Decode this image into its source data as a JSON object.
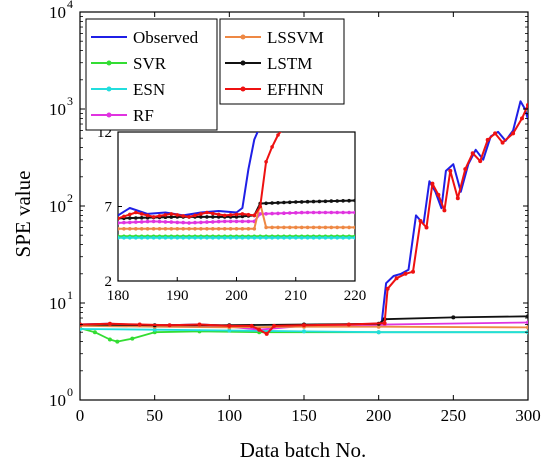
{
  "chart_data": {
    "type": "line",
    "xlabel": "Data batch No.",
    "ylabel": "SPE value",
    "yscale": "log",
    "xlim": [
      0,
      300
    ],
    "ylim": [
      1,
      10000
    ],
    "xticks": [
      "0",
      "50",
      "100",
      "150",
      "200",
      "250",
      "300"
    ],
    "yticks": [
      {
        "base": "10",
        "exp": "0"
      },
      {
        "base": "10",
        "exp": "1"
      },
      {
        "base": "10",
        "exp": "2"
      },
      {
        "base": "10",
        "exp": "3"
      },
      {
        "base": "10",
        "exp": "4"
      }
    ],
    "grid": false,
    "legend_placement": "top-left",
    "series": [
      {
        "name": "Observed",
        "color": "#1f1fe6",
        "marker": "none",
        "points": [
          [
            0,
            6.0
          ],
          [
            20,
            6.1
          ],
          [
            40,
            5.9
          ],
          [
            60,
            5.9
          ],
          [
            80,
            6.0
          ],
          [
            100,
            5.8
          ],
          [
            115,
            5.7
          ],
          [
            120,
            5.2
          ],
          [
            125,
            4.9
          ],
          [
            130,
            5.7
          ],
          [
            150,
            5.9
          ],
          [
            180,
            6.0
          ],
          [
            200,
            6.1
          ],
          [
            202,
            6.3
          ],
          [
            205,
            16
          ],
          [
            210,
            19
          ],
          [
            215,
            20
          ],
          [
            220,
            22
          ],
          [
            225,
            80
          ],
          [
            230,
            65
          ],
          [
            234,
            180
          ],
          [
            238,
            140
          ],
          [
            242,
            95
          ],
          [
            245,
            230
          ],
          [
            250,
            270
          ],
          [
            255,
            140
          ],
          [
            260,
            270
          ],
          [
            265,
            380
          ],
          [
            270,
            300
          ],
          [
            275,
            520
          ],
          [
            280,
            580
          ],
          [
            285,
            470
          ],
          [
            290,
            600
          ],
          [
            295,
            1200
          ],
          [
            298,
            1000
          ],
          [
            300,
            780
          ]
        ]
      },
      {
        "name": "SVR",
        "color": "#33dd33",
        "marker": "dot",
        "points": [
          [
            0,
            5.5
          ],
          [
            10,
            5.0
          ],
          [
            20,
            4.2
          ],
          [
            25,
            4.0
          ],
          [
            35,
            4.3
          ],
          [
            50,
            5.0
          ],
          [
            80,
            5.1
          ],
          [
            120,
            5.0
          ],
          [
            200,
            5.0
          ],
          [
            300,
            5.0
          ]
        ]
      },
      {
        "name": "ESN",
        "color": "#22dddd",
        "marker": "dot",
        "points": [
          [
            0,
            5.4
          ],
          [
            50,
            5.3
          ],
          [
            100,
            5.2
          ],
          [
            150,
            5.1
          ],
          [
            200,
            5.0
          ],
          [
            300,
            5.0
          ]
        ]
      },
      {
        "name": "RF",
        "color": "#e033e0",
        "marker": "dot",
        "points": [
          [
            0,
            5.9
          ],
          [
            50,
            5.8
          ],
          [
            100,
            5.7
          ],
          [
            120,
            5.3
          ],
          [
            150,
            5.8
          ],
          [
            200,
            5.9
          ],
          [
            204,
            6.0
          ],
          [
            300,
            6.3
          ]
        ]
      },
      {
        "name": "LSSVM",
        "color": "#ee8844",
        "marker": "dot",
        "points": [
          [
            0,
            5.8
          ],
          [
            50,
            5.7
          ],
          [
            100,
            5.6
          ],
          [
            150,
            5.7
          ],
          [
            200,
            5.7
          ],
          [
            300,
            5.6
          ]
        ]
      },
      {
        "name": "LSTM",
        "color": "#111111",
        "marker": "dot",
        "points": [
          [
            0,
            6.0
          ],
          [
            50,
            5.9
          ],
          [
            100,
            5.9
          ],
          [
            150,
            6.0
          ],
          [
            200,
            6.1
          ],
          [
            204,
            6.8
          ],
          [
            250,
            7.1
          ],
          [
            300,
            7.3
          ]
        ]
      },
      {
        "name": "EFHNN",
        "color": "#ee1111",
        "marker": "dot",
        "points": [
          [
            0,
            6.0
          ],
          [
            20,
            6.1
          ],
          [
            40,
            6.0
          ],
          [
            60,
            5.9
          ],
          [
            80,
            6.0
          ],
          [
            100,
            5.8
          ],
          [
            115,
            5.8
          ],
          [
            120,
            5.3
          ],
          [
            125,
            4.8
          ],
          [
            130,
            5.8
          ],
          [
            150,
            5.9
          ],
          [
            180,
            6.0
          ],
          [
            204,
            6.2
          ],
          [
            206,
            14
          ],
          [
            212,
            18
          ],
          [
            218,
            20
          ],
          [
            223,
            21
          ],
          [
            228,
            70
          ],
          [
            232,
            60
          ],
          [
            236,
            170
          ],
          [
            240,
            130
          ],
          [
            244,
            90
          ],
          [
            248,
            230
          ],
          [
            253,
            120
          ],
          [
            258,
            240
          ],
          [
            263,
            350
          ],
          [
            268,
            290
          ],
          [
            273,
            480
          ],
          [
            278,
            560
          ],
          [
            283,
            450
          ],
          [
            290,
            560
          ],
          [
            296,
            800
          ],
          [
            300,
            1100
          ]
        ]
      }
    ],
    "inset": {
      "xlim": [
        180,
        220
      ],
      "ylim": [
        2,
        12
      ],
      "xticks": [
        "180",
        "190",
        "200",
        "210",
        "220"
      ],
      "yticks": [
        "2",
        "7",
        "12"
      ],
      "series": [
        {
          "name": "Observed",
          "points": [
            [
              180,
              6.4
            ],
            [
              182,
              6.9
            ],
            [
              185,
              6.5
            ],
            [
              188,
              6.6
            ],
            [
              191,
              6.4
            ],
            [
              194,
              6.6
            ],
            [
              197,
              6.7
            ],
            [
              200,
              6.6
            ],
            [
              201,
              6.9
            ],
            [
              202,
              9.5
            ],
            [
              203,
              11.5
            ],
            [
              204,
              12.4
            ],
            [
              205,
              12.6
            ]
          ]
        },
        {
          "name": "SVR",
          "points": [
            [
              180,
              5.0
            ],
            [
              220,
              5.0
            ]
          ]
        },
        {
          "name": "ESN",
          "points": [
            [
              180,
              4.9
            ],
            [
              220,
              4.9
            ]
          ]
        },
        {
          "name": "RF",
          "points": [
            [
              180,
              5.9
            ],
            [
              186,
              6.0
            ],
            [
              192,
              5.9
            ],
            [
              198,
              6.0
            ],
            [
              203,
              6.0
            ],
            [
              204,
              6.5
            ],
            [
              212,
              6.6
            ],
            [
              220,
              6.6
            ]
          ]
        },
        {
          "name": "LSSVM",
          "points": [
            [
              180,
              5.5
            ],
            [
              203,
              5.5
            ],
            [
              204,
              7.2
            ],
            [
              205,
              5.6
            ],
            [
              220,
              5.6
            ]
          ]
        },
        {
          "name": "LSTM",
          "points": [
            [
              180,
              6.2
            ],
            [
              190,
              6.3
            ],
            [
              200,
              6.3
            ],
            [
              203,
              6.4
            ],
            [
              204,
              7.2
            ],
            [
              210,
              7.3
            ],
            [
              220,
              7.4
            ]
          ]
        },
        {
          "name": "EFHNN",
          "points": [
            [
              180,
              6.2
            ],
            [
              183,
              6.6
            ],
            [
              186,
              6.3
            ],
            [
              189,
              6.5
            ],
            [
              192,
              6.3
            ],
            [
              195,
              6.6
            ],
            [
              198,
              6.4
            ],
            [
              201,
              6.5
            ],
            [
              203,
              6.4
            ],
            [
              204,
              7.0
            ],
            [
              205,
              10.0
            ],
            [
              206,
              11.0
            ],
            [
              207,
              11.8
            ],
            [
              208,
              12.3
            ],
            [
              209,
              12.6
            ]
          ]
        }
      ]
    }
  }
}
